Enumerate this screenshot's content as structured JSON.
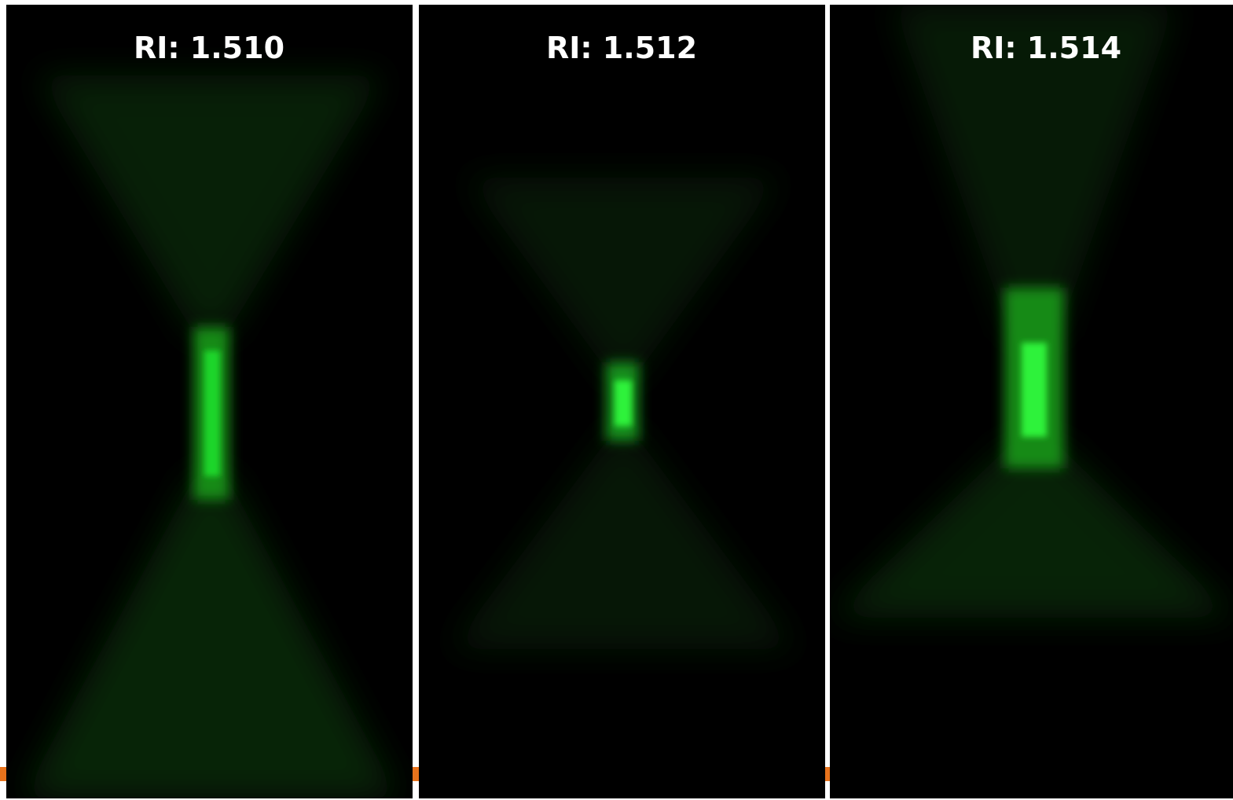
{
  "panels": [
    {
      "label": "RI: 1.510"
    },
    {
      "label": "RI: 1.512"
    },
    {
      "label": "RI: 1.514"
    }
  ]
}
